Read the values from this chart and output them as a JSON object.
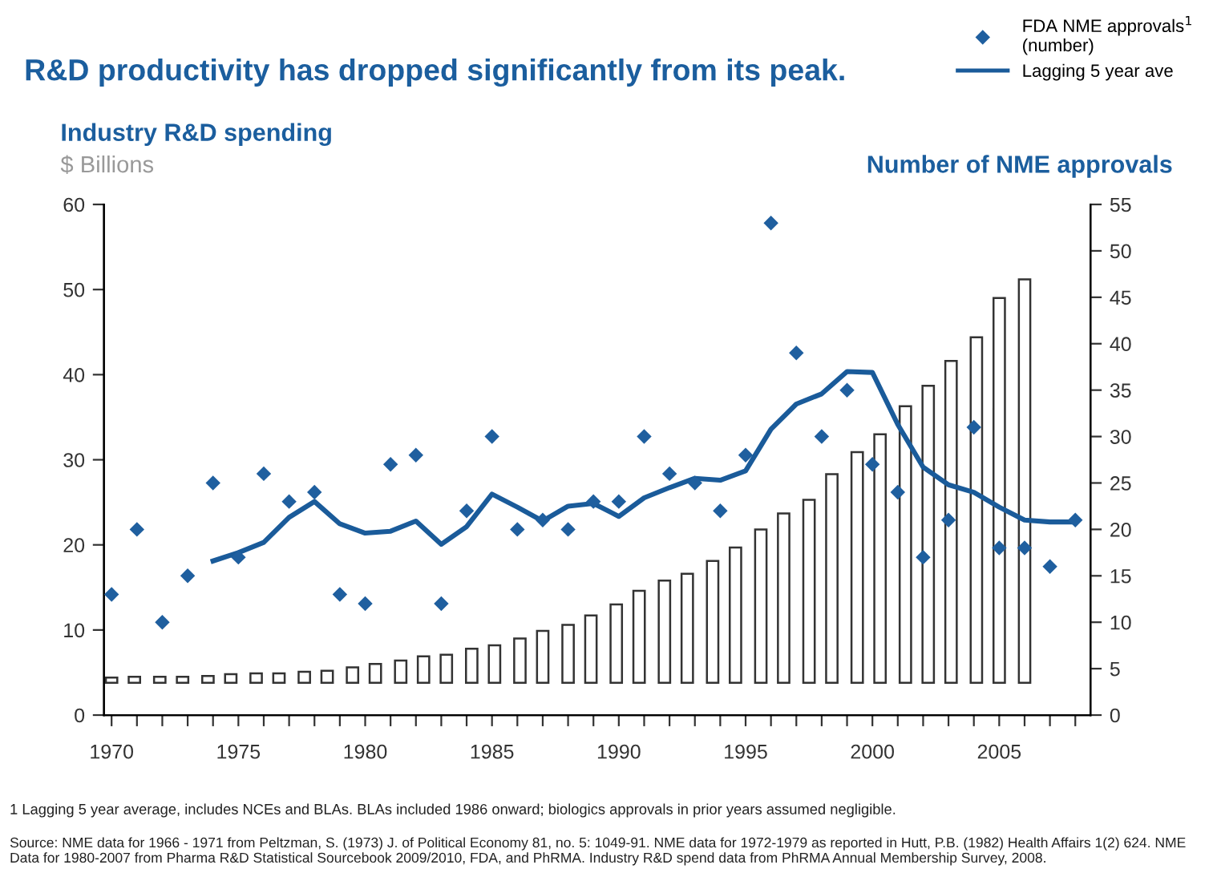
{
  "chart_data": {
    "type": "bar",
    "title": "R&D productivity has dropped significantly from its peak.",
    "subtitle": "$ Billions",
    "ylabel": "Industry R&D spending",
    "y2label": "Number of NME approvals",
    "annotations": [
      "1 Lagging 5 year average, includes NCEs and BLAs. BLAs included 1986 onward; biologics approvals in prior years assumed negligible.",
      "Source: NME data for 1966 - 1971 from Peltzman, S. (1973) J. of Political Economy 81, no. 5: 1049-91. NME data for 1972-1979 as reported in Hutt, P.B. (1982) Health Affairs 1(2) 624. NME Data for 1980-2007 from Pharma R&D Statistical Sourcebook 2009/2010, FDA, and PhRMA. Industry R&D spend data from PhRMA Annual Membership Survey, 2008."
    ],
    "xlim": [
      1969.7,
      2008.6
    ],
    "xticks": [
      1970,
      {
        "value": 1971,
        "label": null
      },
      {
        "value": 1972,
        "label": null
      },
      {
        "value": 1973,
        "label": null
      },
      {
        "value": 1974,
        "label": null
      },
      1975,
      {
        "value": 1976,
        "label": null
      },
      {
        "value": 1977,
        "label": null
      },
      {
        "value": 1978,
        "label": null
      },
      {
        "value": 1979,
        "label": null
      },
      1980,
      {
        "value": 1981,
        "label": null
      },
      {
        "value": 1982,
        "label": null
      },
      {
        "value": 1983,
        "label": null
      },
      {
        "value": 1984,
        "label": null
      },
      1985,
      {
        "value": 1986,
        "label": null
      },
      {
        "value": 1987,
        "label": null
      },
      {
        "value": 1988,
        "label": null
      },
      {
        "value": 1989,
        "label": null
      },
      1990,
      {
        "value": 1991,
        "label": null
      },
      {
        "value": 1992,
        "label": null
      },
      {
        "value": 1993,
        "label": null
      },
      {
        "value": 1994,
        "label": null
      },
      1995,
      {
        "value": 1996,
        "label": null
      },
      {
        "value": 1997,
        "label": null
      },
      {
        "value": 1998,
        "label": null
      },
      {
        "value": 1999,
        "label": null
      },
      2000,
      {
        "value": 2001,
        "label": null
      },
      {
        "value": 2002,
        "label": null
      },
      {
        "value": 2003,
        "label": null
      },
      {
        "value": 2004,
        "label": null
      },
      2005,
      {
        "value": 2006,
        "label": null
      },
      {
        "value": 2007,
        "label": null
      },
      {
        "value": 2008,
        "label": null
      }
    ],
    "ylim": [
      0,
      60
    ],
    "yticks": [
      0,
      10,
      20,
      30,
      40,
      50,
      60
    ],
    "y2lim": [
      0,
      55
    ],
    "y2ticks": [
      0,
      5,
      10,
      15,
      20,
      25,
      30,
      35,
      40,
      45,
      50,
      55
    ],
    "grid": false,
    "legend": "top right",
    "series": [
      {
        "color": "#ffffff",
        "x": [
          1970.0,
          1970.9,
          1971.9,
          1972.8,
          1973.8,
          1974.7,
          1975.7,
          1976.6,
          1977.6,
          1978.5,
          1979.5,
          1980.4,
          1981.4,
          1982.3,
          1983.2,
          1984.2,
          1985.1,
          1986.1,
          1987.0,
          1988.0,
          1988.9,
          1989.9,
          1990.8,
          1991.8,
          1992.7,
          1993.7,
          1994.6,
          1995.6,
          1996.5,
          1997.5,
          1998.4,
          1999.4,
          2000.3,
          2001.3,
          2002.2,
          2003.1,
          2004.1,
          2005.0,
          2006.0
        ],
        "base": [
          3.8,
          3.8,
          3.8,
          3.8,
          3.8,
          3.8,
          3.8,
          3.8,
          3.8,
          3.8,
          3.8,
          3.8,
          3.8,
          3.8,
          3.8,
          3.8,
          3.8,
          3.8,
          3.8,
          3.8,
          3.8,
          3.8,
          3.8,
          3.8,
          3.8,
          3.8,
          3.8,
          3.8,
          3.8,
          3.8,
          3.8,
          3.8,
          3.8,
          3.8,
          3.8,
          3.8,
          3.8,
          3.8,
          3.8
        ],
        "values": [
          0.6,
          0.7,
          0.7,
          0.7,
          0.8,
          1.0,
          1.1,
          1.1,
          1.3,
          1.4,
          1.8,
          2.2,
          2.6,
          3.1,
          3.3,
          4.0,
          4.4,
          5.2,
          6.1,
          6.8,
          7.9,
          9.2,
          10.8,
          12.0,
          12.8,
          14.3,
          15.9,
          18.0,
          19.9,
          21.5,
          24.5,
          27.1,
          29.2,
          32.5,
          34.9,
          37.8,
          40.6,
          45.2,
          47.4
        ]
      },
      {
        "type": "scatter",
        "axis": "y2",
        "name": "FDA NME approvals$^{1}$\n(number)",
        "color": "#1f5f9f",
        "marker": "diamond",
        "x": [
          1970,
          1971,
          1972,
          1973,
          1974,
          1975,
          1976,
          1977,
          1978,
          1979,
          1980,
          1981,
          1982,
          1983,
          1984,
          1985,
          1986,
          1987,
          1988,
          1989,
          1990,
          1991,
          1992,
          1993,
          1994,
          1995,
          1996,
          1997,
          1998,
          1999,
          2000,
          2001,
          2002,
          2003,
          2004,
          2005,
          2006,
          2007,
          2008
        ],
        "values": [
          13,
          20,
          10,
          15,
          25,
          17,
          26,
          23,
          24,
          13,
          12,
          27,
          28,
          12,
          22,
          30,
          20,
          21,
          20,
          23,
          23,
          30,
          26,
          25,
          22,
          28,
          53,
          39,
          30,
          35,
          27,
          24,
          17,
          21,
          31,
          18,
          18,
          16,
          21
        ]
      },
      {
        "type": "line",
        "axis": "y2",
        "name": "Lagging 5 year ave",
        "color": "#1a5b9a",
        "line_style": "solid",
        "x": [
          1974,
          1975,
          1976,
          1977,
          1978,
          1979,
          1980,
          1981,
          1982,
          1983,
          1984,
          1985,
          1986,
          1987,
          1988,
          1989,
          1990,
          1991,
          1992,
          1993,
          1994,
          1995,
          1996,
          1997,
          1998,
          1999,
          2000,
          2001,
          2002,
          2003,
          2004,
          2005,
          2006,
          2007,
          2008
        ],
        "values": [
          16.6,
          17.5,
          18.6,
          21.3,
          23.0,
          20.6,
          19.6,
          19.8,
          20.9,
          18.4,
          20.3,
          23.8,
          22.4,
          20.9,
          22.5,
          22.8,
          21.4,
          23.4,
          24.5,
          25.5,
          25.3,
          26.3,
          30.8,
          33.5,
          34.6,
          37.0,
          36.9,
          31.3,
          26.7,
          24.8,
          24.0,
          22.4,
          21.0,
          20.8,
          20.8
        ]
      }
    ]
  }
}
